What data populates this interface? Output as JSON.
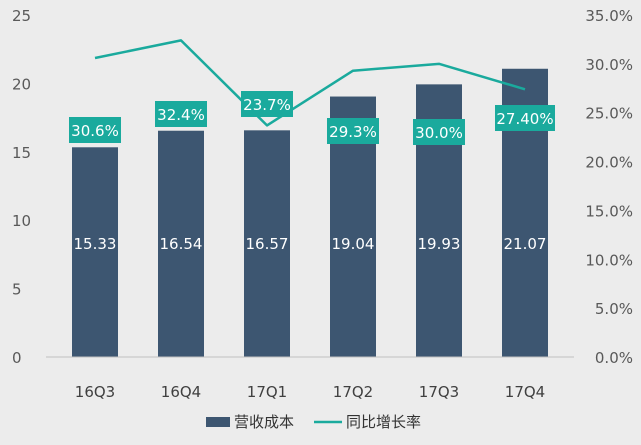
{
  "chart_data": {
    "type": "bar",
    "categories": [
      "16Q3",
      "16Q4",
      "17Q1",
      "17Q2",
      "17Q3",
      "17Q4"
    ],
    "series": [
      {
        "name": "营收成本",
        "type": "bar",
        "axis": "left",
        "values": [
          15.33,
          16.54,
          16.57,
          19.04,
          19.93,
          21.07
        ],
        "labels": [
          "15.33",
          "16.54",
          "16.57",
          "19.04",
          "19.93",
          "21.07"
        ]
      },
      {
        "name": "同比增长率",
        "type": "line",
        "axis": "right",
        "values": [
          30.6,
          32.4,
          23.7,
          29.3,
          30.0,
          27.4
        ],
        "labels": [
          "30.6%",
          "32.4%",
          "23.7%",
          "29.3%",
          "30.0%",
          "27.40%"
        ]
      }
    ],
    "y_left": {
      "min": 0,
      "max": 25,
      "ticks": [
        "0",
        "5",
        "10",
        "15",
        "20",
        "25"
      ]
    },
    "y_right": {
      "min": 0,
      "max": 35,
      "ticks": [
        "0.0%",
        "5.0%",
        "10.0%",
        "15.0%",
        "20.0%",
        "25.0%",
        "30.0%",
        "35.0%"
      ]
    },
    "legend_position": "bottom",
    "colors": {
      "bar": "#3d5671",
      "line": "#1aaa9d",
      "label_box": "#1aaa9d",
      "background": "#ececec"
    }
  }
}
